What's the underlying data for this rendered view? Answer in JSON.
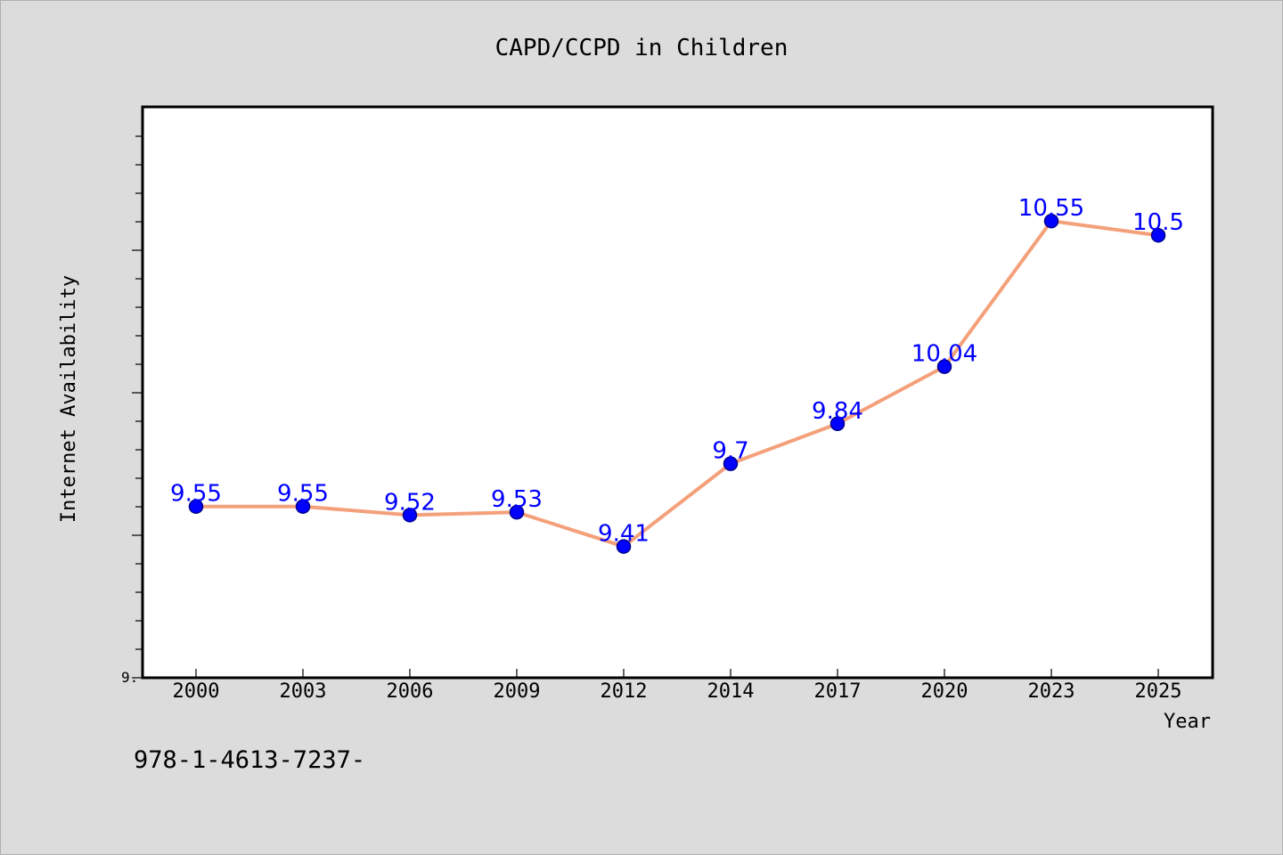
{
  "chart_data": {
    "type": "line",
    "title": "CAPD/CCPD in Children",
    "xlabel": "Year",
    "ylabel": "Internet Availability",
    "categories": [
      "2000",
      "2003",
      "2006",
      "2009",
      "2012",
      "2014",
      "2017",
      "2020",
      "2023",
      "2025"
    ],
    "series": [
      {
        "values": [
          9.55,
          9.55,
          9.52,
          9.53,
          9.41,
          9.7,
          9.84,
          10.04,
          10.55,
          10.5
        ],
        "labels": [
          "9.55",
          "9.55",
          "9.52",
          "9.53",
          "9.41",
          "9.7",
          "9.84",
          "10.04",
          "10.55",
          "10.5"
        ]
      }
    ],
    "ylim": [
      8.95,
      10.95
    ],
    "y_tick_label": "9.",
    "grid": false,
    "colors": {
      "line": "#f4a07a",
      "marker": "#0000ff",
      "marker_edge": "#00008b",
      "data_label": "#0000ff",
      "plot_bg": "#ffffff",
      "figure_bg": "#dcdcdc"
    }
  },
  "footer": {
    "text": "978-1-4613-7237-"
  }
}
